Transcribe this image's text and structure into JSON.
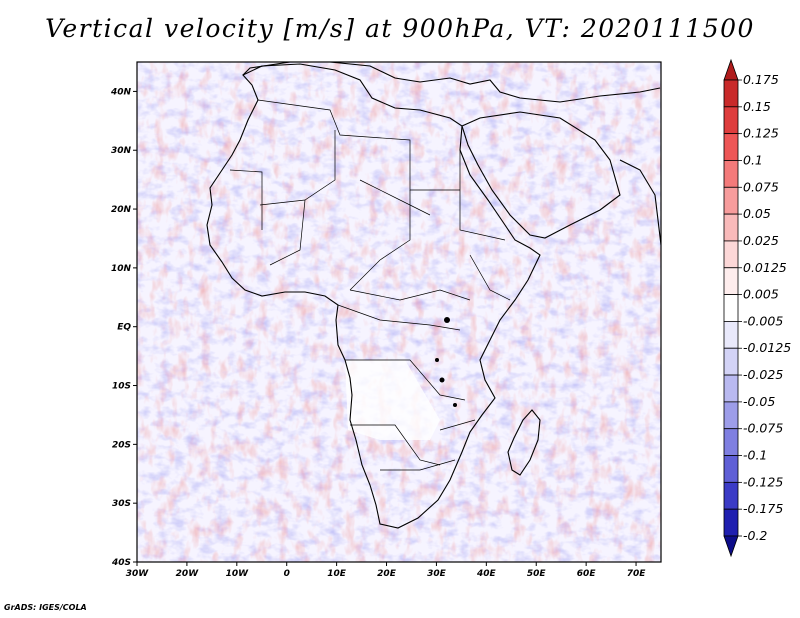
{
  "title": "Vertical velocity [m/s] at 900hPa, VT: 2020111500",
  "credit": "GrADS: IGES/COLA",
  "map": {
    "region": "Africa",
    "field": "vertical velocity",
    "level": "900hPa",
    "lon_range": [
      -30,
      75
    ],
    "lat_range": [
      -40,
      45
    ],
    "lon_ticks": [
      {
        "value": -30,
        "label": "30W"
      },
      {
        "value": -20,
        "label": "20W"
      },
      {
        "value": -10,
        "label": "10W"
      },
      {
        "value": 0,
        "label": "0"
      },
      {
        "value": 10,
        "label": "10E"
      },
      {
        "value": 20,
        "label": "20E"
      },
      {
        "value": 30,
        "label": "30E"
      },
      {
        "value": 40,
        "label": "40E"
      },
      {
        "value": 50,
        "label": "50E"
      },
      {
        "value": 60,
        "label": "60E"
      },
      {
        "value": 70,
        "label": "70E"
      }
    ],
    "lat_ticks": [
      {
        "value": 40,
        "label": "40N"
      },
      {
        "value": 30,
        "label": "30N"
      },
      {
        "value": 20,
        "label": "20N"
      },
      {
        "value": 10,
        "label": "10N"
      },
      {
        "value": 0,
        "label": "EQ"
      },
      {
        "value": -10,
        "label": "10S"
      },
      {
        "value": -20,
        "label": "20S"
      },
      {
        "value": -30,
        "label": "30S"
      },
      {
        "value": -40,
        "label": "40S"
      }
    ]
  },
  "colorbar": {
    "labels": [
      "0.175",
      "0.15",
      "0.125",
      "0.1",
      "0.075",
      "0.05",
      "0.025",
      "0.0125",
      "0.005",
      "-0.005",
      "-0.0125",
      "-0.025",
      "-0.05",
      "-0.075",
      "-0.1",
      "-0.125",
      "-0.175",
      "-0.2"
    ],
    "colors": [
      "#b01c1c",
      "#c92a2a",
      "#de3d3d",
      "#ee5656",
      "#f47a7a",
      "#f79c9c",
      "#f9baba",
      "#fcd7d7",
      "#feeded",
      "#ffffff",
      "#e9e9fb",
      "#d3d3f6",
      "#b9b9f0",
      "#9d9de9",
      "#7f7fe1",
      "#5f5fd6",
      "#3b3bc6",
      "#1f1fb0",
      "#0d0d8a"
    ]
  }
}
